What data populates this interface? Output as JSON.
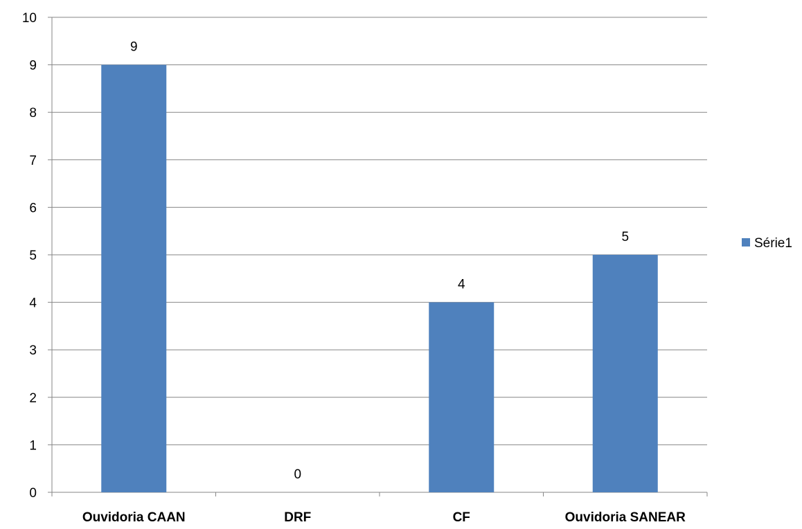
{
  "chart_data": {
    "type": "bar",
    "categories": [
      "Ouvidoria CAAN",
      "DRF",
      "CF",
      "Ouvidoria SANEAR"
    ],
    "series": [
      {
        "name": "Série1",
        "values": [
          9,
          0,
          4,
          5
        ],
        "color": "#4F81BD"
      }
    ],
    "ylim": [
      0,
      10
    ],
    "yticks": [
      0,
      1,
      2,
      3,
      4,
      5,
      6,
      7,
      8,
      9,
      10
    ],
    "data_labels": true,
    "grid": true,
    "gridline_color": "#868686",
    "legend_position": "right",
    "title": "",
    "xlabel": "",
    "ylabel": ""
  }
}
